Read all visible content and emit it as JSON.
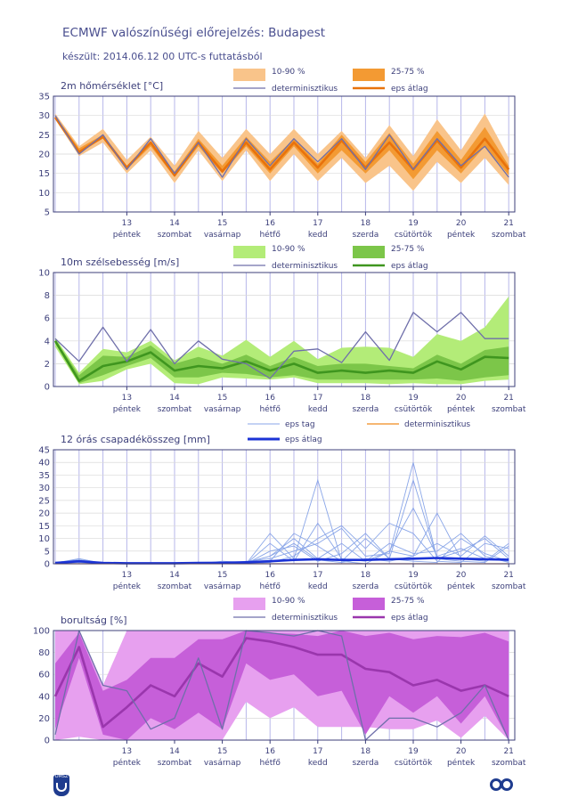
{
  "header": {
    "title": "ECMWF valószínűségi előrejelzés: Budapest",
    "subtitle": "készült: 2014.06.12 00 UTC-s futtatásból"
  },
  "colors": {
    "temp_outer": "#f9c48a",
    "temp_inner": "#f39a33",
    "temp_mean": "#e8720c",
    "wind_outer": "#b3ec78",
    "wind_inner": "#7cc649",
    "wind_mean": "#3f961f",
    "cloud_outer": "#e7a0ef",
    "cloud_inner": "#c65fd9",
    "cloud_mean": "#9a36ad",
    "det": "#6f6faa",
    "precip_members": "#8aa6e8",
    "precip_mean": "#1b33d6",
    "precip_det": "#f08a1e",
    "grid": "#b7b7ea",
    "axis": "#3c3f7a"
  },
  "x_days": [
    {
      "num": "13",
      "name": "péntek"
    },
    {
      "num": "14",
      "name": "szombat"
    },
    {
      "num": "15",
      "name": "vasárnap"
    },
    {
      "num": "16",
      "name": "hétfő"
    },
    {
      "num": "17",
      "name": "kedd"
    },
    {
      "num": "18",
      "name": "szerda"
    },
    {
      "num": "19",
      "name": "csütörtök"
    },
    {
      "num": "20",
      "name": "péntek"
    },
    {
      "num": "21",
      "name": "szombat"
    }
  ],
  "legend": {
    "outer": "10-90 %",
    "inner": "25-75 %",
    "det": "determinisztikus",
    "mean": "eps átlag",
    "member": "eps tag"
  },
  "logos": {
    "left": "OMSZ"
  },
  "chart_data": [
    {
      "type": "area",
      "title": "2m hőmérséklet [°C]",
      "ylim": [
        5,
        35
      ],
      "yticks": [
        5,
        10,
        15,
        20,
        25,
        30,
        35
      ],
      "x": [
        0,
        0.5,
        1,
        1.5,
        2,
        2.5,
        3,
        3.5,
        4,
        4.5,
        5,
        5.5,
        6,
        6.5,
        7,
        7.5,
        8,
        8.5,
        9,
        9.5
      ],
      "p10": [
        29,
        19.5,
        23,
        15,
        21,
        12.5,
        21,
        13,
        21,
        13,
        20,
        13,
        19,
        12.5,
        17,
        10.5,
        18,
        12.5,
        19,
        12
      ],
      "p25": [
        29.5,
        20.5,
        24,
        16,
        22,
        14,
        22,
        15,
        22,
        15,
        22,
        15,
        21,
        15,
        21,
        13.5,
        21,
        15,
        22,
        14.5
      ],
      "p75": [
        30,
        21.5,
        25,
        17,
        23,
        15.5,
        24,
        17,
        24.5,
        18,
        24,
        17.5,
        25,
        18,
        25.5,
        17.5,
        26,
        18.5,
        27,
        17
      ],
      "p90": [
        30.5,
        22,
        26.5,
        18.5,
        24.5,
        17,
        26,
        19,
        26.5,
        20,
        26.5,
        20,
        26,
        19,
        27.5,
        19.5,
        29,
        21,
        30.5,
        19
      ],
      "mean": [
        29.5,
        20.5,
        24.5,
        16.5,
        23,
        14.5,
        23,
        15.5,
        23,
        16,
        23,
        16.5,
        23.5,
        16.5,
        23,
        16,
        23.5,
        16.5,
        24,
        16
      ],
      "det": [
        30,
        20,
        25,
        16,
        24,
        15,
        23,
        14,
        24,
        17,
        24,
        18,
        24,
        16,
        25,
        16,
        24,
        17,
        22,
        14
      ]
    },
    {
      "type": "area",
      "title": "10m szélsebesség [m/s]",
      "ylim": [
        0,
        10
      ],
      "yticks": [
        0,
        2,
        4,
        6,
        8,
        10
      ],
      "x": [
        0,
        0.5,
        1,
        1.5,
        2,
        2.5,
        3,
        3.5,
        4,
        4.5,
        5,
        5.5,
        6,
        6.5,
        7,
        7.5,
        8,
        8.5,
        9,
        9.5
      ],
      "p10": [
        3.5,
        0.2,
        0.5,
        1.5,
        2,
        0.3,
        0.2,
        0.8,
        0.7,
        0.6,
        0.8,
        0.3,
        0.3,
        0.3,
        0.2,
        0.3,
        0.2,
        0.2,
        0.5,
        0.6
      ],
      "p25": [
        3.8,
        0.3,
        1,
        1.8,
        2.5,
        0.8,
        0.8,
        1.2,
        1.1,
        0.8,
        1,
        0.6,
        0.6,
        0.6,
        0.6,
        0.6,
        0.7,
        0.5,
        0.8,
        1
      ],
      "p75": [
        4.1,
        1,
        2.7,
        2.6,
        3.6,
        2,
        2.6,
        2,
        2.8,
        1.8,
        2.6,
        1.8,
        2,
        2,
        1.8,
        1.6,
        2.8,
        2,
        3.2,
        3.5
      ],
      "p90": [
        4.3,
        1.2,
        3.3,
        3,
        4,
        2.3,
        3.5,
        2.7,
        4.1,
        2.6,
        4,
        2.4,
        3.4,
        3.5,
        3.4,
        2.6,
        4.6,
        4,
        5.2,
        7.9
      ],
      "mean": [
        4,
        0.5,
        1.8,
        2.2,
        3,
        1.4,
        1.8,
        1.6,
        2.2,
        1.4,
        2,
        1.2,
        1.4,
        1.2,
        1.4,
        1.2,
        2.2,
        1.5,
        2.6,
        2.5
      ],
      "det": [
        4.2,
        2.2,
        5.2,
        2.2,
        5,
        2,
        4,
        2.4,
        2,
        0.7,
        3.1,
        3.3,
        2.1,
        4.8,
        2.3,
        6.5,
        4.8,
        6.5,
        4.2,
        4.2
      ]
    },
    {
      "type": "line",
      "title": "12 órás csapadékösszeg [mm]",
      "ylim": [
        0,
        45
      ],
      "yticks": [
        0,
        5,
        10,
        15,
        20,
        25,
        30,
        35,
        40,
        45
      ],
      "x": [
        0,
        0.5,
        1,
        1.5,
        2,
        2.5,
        3,
        3.5,
        4,
        4.5,
        5,
        5.5,
        6,
        6.5,
        7,
        7.5,
        8,
        8.5,
        9,
        9.5
      ],
      "mean": [
        0.3,
        1,
        0.3,
        0.2,
        0.2,
        0.2,
        0.3,
        0.4,
        0.6,
        1,
        1.5,
        1.8,
        1.5,
        1.5,
        1.8,
        2,
        2.3,
        2,
        1.8,
        1.6
      ],
      "det": [
        0,
        0,
        0,
        0,
        0,
        0,
        0,
        0,
        0,
        0,
        0,
        0,
        0,
        0,
        0,
        0,
        0,
        0,
        0,
        0
      ],
      "members": [
        [
          0,
          2,
          0.2,
          0,
          0,
          0,
          0,
          1,
          0.5,
          3,
          8,
          1.5,
          0.5,
          2,
          1,
          3,
          8,
          3,
          11,
          3
        ],
        [
          0,
          1,
          0,
          0,
          0,
          0,
          0.5,
          0,
          0,
          12,
          2,
          33,
          1,
          0,
          5,
          3,
          20,
          2,
          1,
          8
        ],
        [
          0.5,
          1.5,
          0,
          0,
          0,
          0,
          0,
          0,
          1,
          2,
          5,
          8,
          14,
          3,
          4,
          40,
          2,
          5,
          10,
          2
        ],
        [
          0,
          1,
          0.5,
          0,
          0,
          0,
          0,
          0.5,
          0,
          5,
          7,
          1,
          4,
          12,
          2,
          1,
          0.5,
          10,
          4,
          1
        ],
        [
          0,
          0.5,
          0,
          0,
          0,
          0,
          0,
          0,
          0,
          0.5,
          3,
          10,
          15,
          6,
          16,
          12,
          1,
          0.5,
          8,
          6
        ],
        [
          0.3,
          2,
          0,
          0,
          0,
          0,
          0,
          0.3,
          0,
          8,
          1,
          16,
          2,
          1,
          8,
          4,
          5,
          12,
          3,
          0.5
        ],
        [
          0,
          1,
          0,
          0,
          0,
          0,
          0,
          0,
          0,
          1,
          12,
          7,
          1,
          10,
          2,
          33,
          2,
          1,
          0.5,
          7
        ],
        [
          0,
          1.5,
          0,
          0,
          0,
          0,
          0.5,
          0,
          0.5,
          3,
          10,
          2,
          8,
          1,
          5,
          22,
          3,
          6,
          2,
          1
        ]
      ]
    },
    {
      "type": "area",
      "title": "borultság [%]",
      "ylim": [
        0,
        100
      ],
      "yticks": [
        0,
        20,
        40,
        60,
        80,
        100
      ],
      "x": [
        0,
        0.5,
        1,
        1.5,
        2,
        2.5,
        3,
        3.5,
        4,
        4.5,
        5,
        5.5,
        6,
        6.5,
        7,
        7.5,
        8,
        8.5,
        9,
        9.5
      ],
      "p10": [
        0,
        3,
        0,
        0,
        0,
        0,
        0,
        0,
        35,
        20,
        30,
        12,
        12,
        12,
        10,
        10,
        18,
        2,
        22,
        0
      ],
      "p25": [
        10,
        75,
        5,
        0,
        20,
        10,
        25,
        10,
        70,
        55,
        60,
        40,
        45,
        5,
        40,
        25,
        40,
        15,
        40,
        0
      ],
      "p75": [
        70,
        98,
        45,
        55,
        75,
        75,
        92,
        92,
        100,
        98,
        97,
        95,
        100,
        95,
        98,
        92,
        95,
        94,
        98,
        90
      ],
      "p90": [
        100,
        100,
        50,
        100,
        100,
        100,
        100,
        100,
        100,
        100,
        100,
        100,
        100,
        100,
        100,
        100,
        100,
        100,
        100,
        100
      ],
      "mean": [
        40,
        85,
        12,
        30,
        50,
        40,
        70,
        58,
        93,
        90,
        85,
        78,
        78,
        65,
        62,
        50,
        55,
        45,
        50,
        40
      ],
      "det": [
        5,
        100,
        50,
        45,
        10,
        20,
        75,
        10,
        100,
        98,
        95,
        100,
        95,
        0,
        20,
        20,
        12,
        25,
        50,
        0
      ]
    }
  ]
}
